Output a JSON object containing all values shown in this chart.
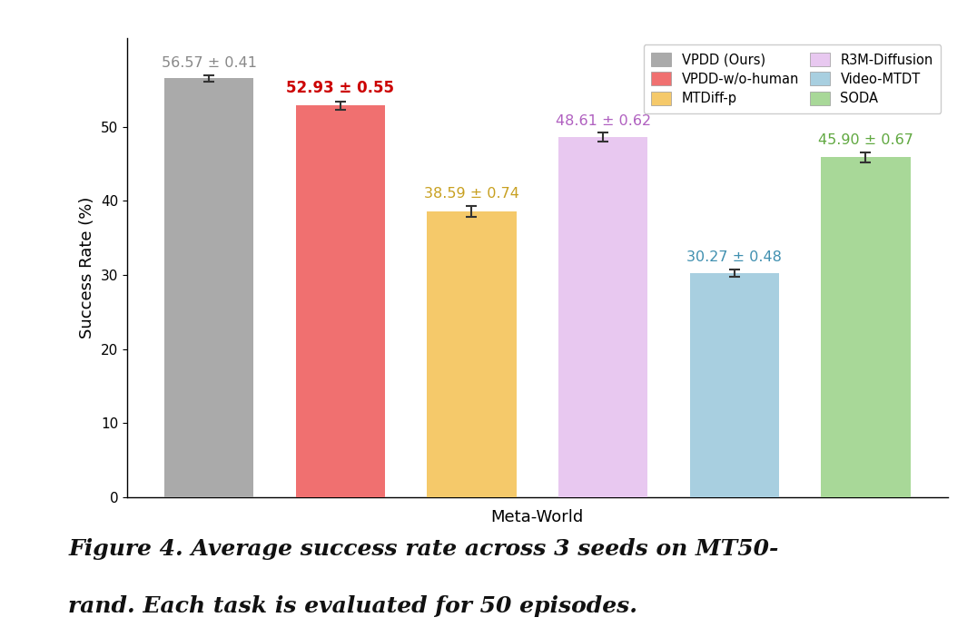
{
  "categories": [
    "VPDD (Ours)",
    "VPDD-w/o-human",
    "MTDiff-p",
    "R3M-Diffusion",
    "Video-MTDT",
    "SODA"
  ],
  "values": [
    56.57,
    52.93,
    38.59,
    48.61,
    30.27,
    45.9
  ],
  "errors": [
    0.41,
    0.55,
    0.74,
    0.62,
    0.48,
    0.67
  ],
  "bar_colors": [
    "#aaaaaa",
    "#f07070",
    "#f5c96a",
    "#e8c8f0",
    "#a8cfe0",
    "#a8d898"
  ],
  "label_colors": [
    "#888888",
    "#cc0000",
    "#c8a020",
    "#b060c0",
    "#4090b0",
    "#60a840"
  ],
  "xlabel": "Meta-World",
  "ylabel": "Success Rate (%)",
  "ylim": [
    0,
    62
  ],
  "yticks": [
    0,
    10,
    20,
    30,
    40,
    50
  ],
  "legend_labels": [
    "VPDD (Ours)",
    "VPDD-w/o-human",
    "MTDiff-p",
    "R3M-Diffusion",
    "Video-MTDT",
    "SODA"
  ],
  "legend_colors": [
    "#aaaaaa",
    "#f07070",
    "#f5c96a",
    "#e8c8f0",
    "#a8cfe0",
    "#a8d898"
  ],
  "caption_line1": "Figure 4. Average success rate across 3 seeds on MT50-",
  "caption_line2": "rand. Each task is evaluated for 50 episodes.",
  "background_color": "#ffffff",
  "figsize": [
    10.76,
    7.02
  ],
  "dpi": 100
}
